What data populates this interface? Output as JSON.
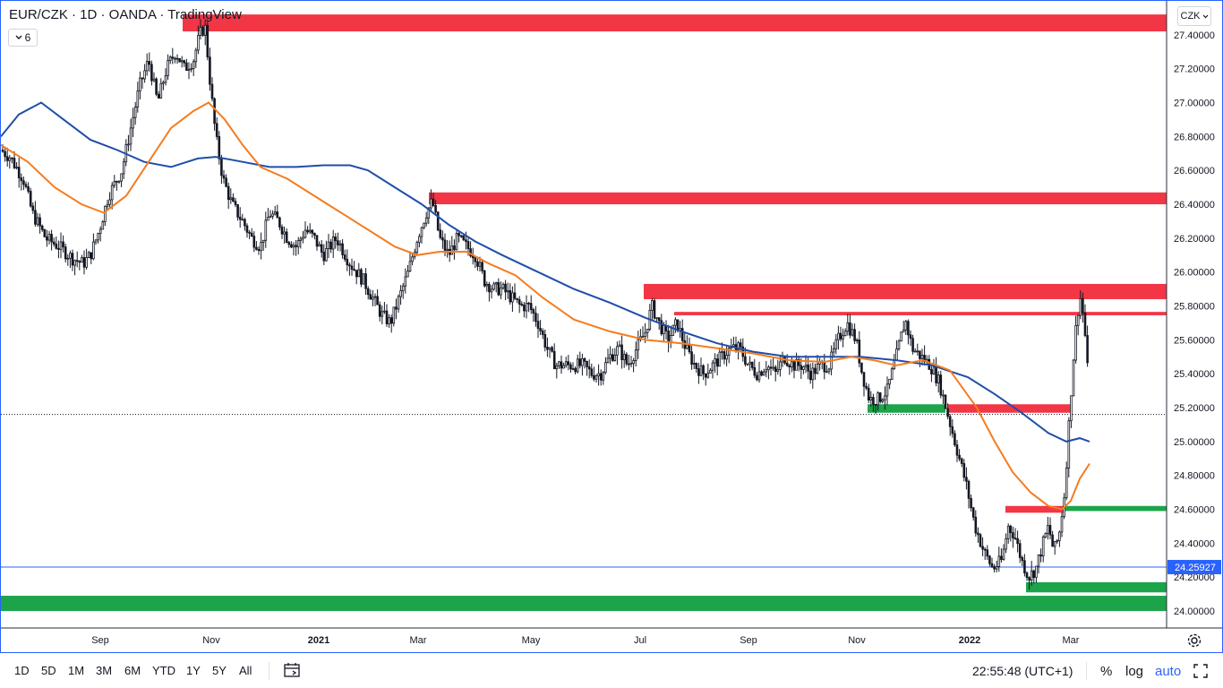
{
  "header": {
    "title": "EUR/CZK · 1D · OANDA · TradingView",
    "indicator_count": "6",
    "currency": "CZK"
  },
  "chart_data": {
    "type": "candlestick",
    "symbol": "EUR/CZK",
    "interval": "1D",
    "source": "OANDA",
    "x_tick_labels": [
      "Sep",
      "Nov",
      "2021",
      "Mar",
      "May",
      "Jul",
      "Sep",
      "Nov",
      "2022",
      "Mar"
    ],
    "y_tick_labels": [
      "24.00000",
      "24.20000",
      "24.40000",
      "24.60000",
      "24.80000",
      "25.00000",
      "25.20000",
      "25.40000",
      "25.60000",
      "25.80000",
      "26.00000",
      "26.20000",
      "26.40000",
      "26.60000",
      "26.80000",
      "27.00000",
      "27.20000",
      "27.40000"
    ],
    "ylim": [
      23.9,
      27.6
    ],
    "last_price": 25.16,
    "marker_price_label": "24.25927",
    "marker_price": 24.25927,
    "price_path": [
      [
        0,
        26.72
      ],
      [
        10,
        26.68
      ],
      [
        25,
        26.55
      ],
      [
        35,
        26.35
      ],
      [
        50,
        26.2
      ],
      [
        65,
        26.15
      ],
      [
        80,
        26.08
      ],
      [
        92,
        26.05
      ],
      [
        100,
        26.1
      ],
      [
        110,
        26.25
      ],
      [
        120,
        26.45
      ],
      [
        135,
        26.6
      ],
      [
        145,
        26.85
      ],
      [
        155,
        27.1
      ],
      [
        165,
        27.25
      ],
      [
        175,
        27.0
      ],
      [
        185,
        27.2
      ],
      [
        195,
        27.3
      ],
      [
        205,
        27.2
      ],
      [
        215,
        27.25
      ],
      [
        222,
        27.4
      ],
      [
        228,
        27.45
      ],
      [
        234,
        27.1
      ],
      [
        240,
        26.8
      ],
      [
        248,
        26.55
      ],
      [
        258,
        26.4
      ],
      [
        270,
        26.3
      ],
      [
        280,
        26.2
      ],
      [
        290,
        26.15
      ],
      [
        300,
        26.35
      ],
      [
        310,
        26.3
      ],
      [
        320,
        26.2
      ],
      [
        330,
        26.15
      ],
      [
        340,
        26.25
      ],
      [
        350,
        26.2
      ],
      [
        360,
        26.1
      ],
      [
        375,
        26.2
      ],
      [
        390,
        26.05
      ],
      [
        405,
        25.95
      ],
      [
        415,
        25.85
      ],
      [
        425,
        25.75
      ],
      [
        435,
        25.7
      ],
      [
        445,
        25.85
      ],
      [
        455,
        26.0
      ],
      [
        465,
        26.2
      ],
      [
        475,
        26.35
      ],
      [
        482,
        26.42
      ],
      [
        490,
        26.2
      ],
      [
        500,
        26.1
      ],
      [
        510,
        26.2
      ],
      [
        520,
        26.15
      ],
      [
        530,
        26.1
      ],
      [
        540,
        25.95
      ],
      [
        550,
        25.9
      ],
      [
        560,
        25.9
      ],
      [
        570,
        25.85
      ],
      [
        580,
        25.8
      ],
      [
        590,
        25.8
      ],
      [
        600,
        25.7
      ],
      [
        610,
        25.55
      ],
      [
        620,
        25.45
      ],
      [
        630,
        25.45
      ],
      [
        640,
        25.45
      ],
      [
        650,
        25.45
      ],
      [
        660,
        25.4
      ],
      [
        670,
        25.4
      ],
      [
        680,
        25.5
      ],
      [
        690,
        25.55
      ],
      [
        700,
        25.45
      ],
      [
        710,
        25.55
      ],
      [
        720,
        25.65
      ],
      [
        727,
        25.8
      ],
      [
        735,
        25.7
      ],
      [
        745,
        25.6
      ],
      [
        755,
        25.7
      ],
      [
        765,
        25.55
      ],
      [
        775,
        25.45
      ],
      [
        785,
        25.4
      ],
      [
        795,
        25.45
      ],
      [
        805,
        25.5
      ],
      [
        815,
        25.55
      ],
      [
        825,
        25.55
      ],
      [
        835,
        25.45
      ],
      [
        845,
        25.4
      ],
      [
        855,
        25.45
      ],
      [
        865,
        25.4
      ],
      [
        875,
        25.5
      ],
      [
        885,
        25.45
      ],
      [
        895,
        25.45
      ],
      [
        905,
        25.4
      ],
      [
        915,
        25.45
      ],
      [
        925,
        25.45
      ],
      [
        935,
        25.6
      ],
      [
        945,
        25.7
      ],
      [
        955,
        25.6
      ],
      [
        962,
        25.4
      ],
      [
        970,
        25.25
      ],
      [
        980,
        25.25
      ],
      [
        990,
        25.3
      ],
      [
        1000,
        25.5
      ],
      [
        1010,
        25.72
      ],
      [
        1018,
        25.55
      ],
      [
        1028,
        25.5
      ],
      [
        1038,
        25.45
      ],
      [
        1048,
        25.35
      ],
      [
        1058,
        25.15
      ],
      [
        1068,
        24.95
      ],
      [
        1078,
        24.75
      ],
      [
        1088,
        24.5
      ],
      [
        1098,
        24.35
      ],
      [
        1108,
        24.25
      ],
      [
        1118,
        24.3
      ],
      [
        1125,
        24.5
      ],
      [
        1132,
        24.45
      ],
      [
        1140,
        24.3
      ],
      [
        1148,
        24.2
      ],
      [
        1156,
        24.25
      ],
      [
        1164,
        24.4
      ],
      [
        1170,
        24.5
      ],
      [
        1176,
        24.35
      ],
      [
        1182,
        24.45
      ],
      [
        1188,
        24.7
      ],
      [
        1194,
        25.2
      ],
      [
        1198,
        25.5
      ],
      [
        1202,
        25.75
      ],
      [
        1206,
        25.85
      ],
      [
        1210,
        25.7
      ],
      [
        1214,
        25.4
      ],
      [
        1216,
        25.16
      ]
    ],
    "ma_orange": [
      [
        0,
        26.75
      ],
      [
        30,
        26.65
      ],
      [
        60,
        26.5
      ],
      [
        90,
        26.4
      ],
      [
        115,
        26.35
      ],
      [
        140,
        26.45
      ],
      [
        165,
        26.65
      ],
      [
        190,
        26.85
      ],
      [
        215,
        26.95
      ],
      [
        232,
        27.0
      ],
      [
        250,
        26.9
      ],
      [
        270,
        26.75
      ],
      [
        290,
        26.62
      ],
      [
        320,
        26.55
      ],
      [
        350,
        26.45
      ],
      [
        380,
        26.35
      ],
      [
        410,
        26.25
      ],
      [
        440,
        26.15
      ],
      [
        465,
        26.1
      ],
      [
        490,
        26.12
      ],
      [
        520,
        26.12
      ],
      [
        545,
        26.05
      ],
      [
        575,
        25.98
      ],
      [
        605,
        25.85
      ],
      [
        640,
        25.72
      ],
      [
        680,
        25.65
      ],
      [
        720,
        25.6
      ],
      [
        760,
        25.58
      ],
      [
        800,
        25.55
      ],
      [
        840,
        25.52
      ],
      [
        880,
        25.48
      ],
      [
        920,
        25.47
      ],
      [
        950,
        25.5
      ],
      [
        975,
        25.48
      ],
      [
        1000,
        25.45
      ],
      [
        1030,
        25.48
      ],
      [
        1060,
        25.42
      ],
      [
        1090,
        25.2
      ],
      [
        1110,
        25.0
      ],
      [
        1130,
        24.82
      ],
      [
        1150,
        24.7
      ],
      [
        1170,
        24.62
      ],
      [
        1185,
        24.6
      ],
      [
        1195,
        24.65
      ],
      [
        1205,
        24.78
      ],
      [
        1216,
        24.87
      ]
    ],
    "ma_blue": [
      [
        0,
        26.8
      ],
      [
        20,
        26.93
      ],
      [
        45,
        27.0
      ],
      [
        70,
        26.9
      ],
      [
        100,
        26.78
      ],
      [
        130,
        26.72
      ],
      [
        160,
        26.65
      ],
      [
        190,
        26.62
      ],
      [
        220,
        26.67
      ],
      [
        240,
        26.68
      ],
      [
        270,
        26.65
      ],
      [
        300,
        26.62
      ],
      [
        330,
        26.62
      ],
      [
        360,
        26.63
      ],
      [
        390,
        26.63
      ],
      [
        410,
        26.6
      ],
      [
        440,
        26.5
      ],
      [
        470,
        26.4
      ],
      [
        500,
        26.28
      ],
      [
        530,
        26.18
      ],
      [
        560,
        26.1
      ],
      [
        600,
        26.0
      ],
      [
        640,
        25.9
      ],
      [
        680,
        25.82
      ],
      [
        720,
        25.73
      ],
      [
        760,
        25.65
      ],
      [
        800,
        25.58
      ],
      [
        840,
        25.53
      ],
      [
        880,
        25.5
      ],
      [
        920,
        25.5
      ],
      [
        960,
        25.5
      ],
      [
        1000,
        25.48
      ],
      [
        1040,
        25.45
      ],
      [
        1080,
        25.38
      ],
      [
        1110,
        25.28
      ],
      [
        1140,
        25.17
      ],
      [
        1170,
        25.05
      ],
      [
        1190,
        25.0
      ],
      [
        1205,
        25.02
      ],
      [
        1216,
        25.0
      ]
    ],
    "zones": [
      {
        "color": "#f23645",
        "y1": 27.42,
        "y2": 27.52,
        "x1": 203,
        "x2": 1302
      },
      {
        "color": "#f23645",
        "y1": 26.4,
        "y2": 26.47,
        "x1": 478,
        "x2": 1302
      },
      {
        "color": "#f23645",
        "y1": 25.84,
        "y2": 25.93,
        "x1": 718,
        "x2": 1302
      },
      {
        "color": "#f23645",
        "y1": 25.745,
        "y2": 25.765,
        "x1": 752,
        "x2": 1302
      },
      {
        "color": "#089981",
        "y1": 25.17,
        "y2": 25.22,
        "x1": 968,
        "x2": 1055
      },
      {
        "color": "#f23645",
        "y1": 25.17,
        "y2": 25.22,
        "x1": 1058,
        "x2": 1195
      },
      {
        "color": "#f23645",
        "y1": 24.58,
        "y2": 24.62,
        "x1": 1122,
        "x2": 1188
      },
      {
        "color": "#089981",
        "y1": 24.59,
        "y2": 24.62,
        "x1": 1188,
        "x2": 1302
      },
      {
        "color": "#089981",
        "y1": 24.11,
        "y2": 24.17,
        "x1": 1145,
        "x2": 1302
      },
      {
        "color": "#089981",
        "y1": 24.0,
        "y2": 24.09,
        "x1": 0,
        "x2": 1302
      }
    ],
    "colors": {
      "candle": "#131722",
      "ma_orange": "#f57c1f",
      "ma_blue": "#1f4ea8",
      "red_zone": "#f23645",
      "green_zone": "#1ca44a",
      "marker_line": "#2962ff"
    }
  },
  "x_axis": {
    "labels": [
      "Sep",
      "Nov",
      "2021",
      "Mar",
      "May",
      "Jul",
      "Sep",
      "Nov",
      "2022",
      "Mar"
    ]
  },
  "bottom_toolbar": {
    "ranges": [
      "1D",
      "5D",
      "1M",
      "3M",
      "6M",
      "YTD",
      "1Y",
      "5Y",
      "All"
    ],
    "clock": "22:55:48 (UTC+1)",
    "percent": "%",
    "log": "log",
    "auto": "auto"
  },
  "icons": {
    "indicator_toggle": "chevron-down-icon",
    "settings": "gear-icon",
    "date_range": "calendar-range-icon",
    "fullscreen": "fullscreen-icon"
  }
}
